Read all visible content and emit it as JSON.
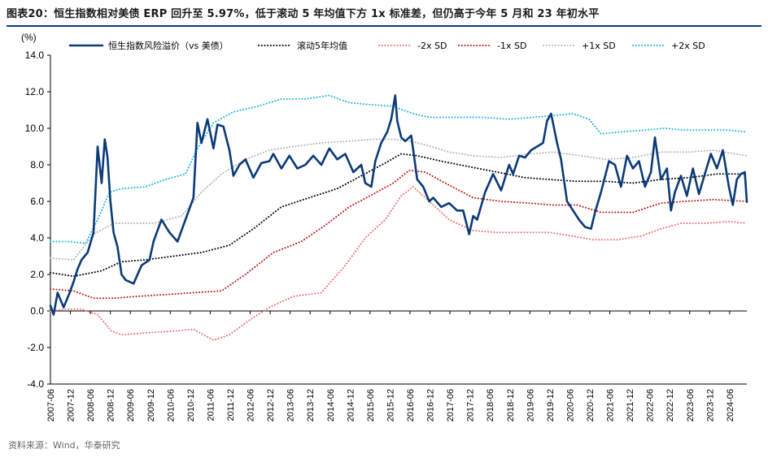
{
  "page": {
    "title": "图表20：恒生指数相对美债 ERP 回升至 5.97%，低于滚动 5 年均值下方 1x 标准差，但仍高于今年 5 月和 23 年初水平",
    "source": "资料来源：Wind，华泰研究"
  },
  "chart_data": {
    "type": "line",
    "title": "恒生指数相对美债 ERP 回升至 5.97%，低于滚动 5 年均值下方 1x 标准差，但仍高于今年 5 月和 23 年初水平",
    "ylabel": "(%)",
    "ylim": [
      -4.0,
      14.0
    ],
    "yticks": [
      "14.0",
      "12.0",
      "10.0",
      "8.0",
      "6.0",
      "4.0",
      "2.0",
      "0.0",
      "-2.0",
      "-4.0"
    ],
    "xlim": [
      2007.42,
      2024.85
    ],
    "xticks": [
      "2007-06",
      "2007-12",
      "2008-06",
      "2008-12",
      "2009-06",
      "2009-12",
      "2010-06",
      "2010-12",
      "2011-06",
      "2011-12",
      "2012-06",
      "2012-12",
      "2013-06",
      "2013-12",
      "2014-06",
      "2014-12",
      "2015-06",
      "2015-12",
      "2016-06",
      "2016-12",
      "2017-06",
      "2017-12",
      "2018-06",
      "2018-12",
      "2019-06",
      "2019-12",
      "2020-06",
      "2020-12",
      "2021-06",
      "2021-12",
      "2022-06",
      "2022-12",
      "2023-06",
      "2023-12",
      "2024-06"
    ],
    "series": [
      {
        "name": "恒生指数风险溢价（vs 美债）",
        "color": "#0b3a78",
        "style": "solid",
        "x": [
          2007.42,
          2007.5,
          2007.6,
          2007.75,
          2007.9,
          2008.0,
          2008.1,
          2008.2,
          2008.35,
          2008.5,
          2008.6,
          2008.7,
          2008.78,
          2008.85,
          2008.92,
          2009.0,
          2009.1,
          2009.2,
          2009.3,
          2009.5,
          2009.7,
          2009.9,
          2010.0,
          2010.2,
          2010.4,
          2010.6,
          2010.8,
          2011.0,
          2011.1,
          2011.2,
          2011.35,
          2011.5,
          2011.6,
          2011.75,
          2011.9,
          2012.0,
          2012.15,
          2012.3,
          2012.5,
          2012.7,
          2012.9,
          2013.0,
          2013.2,
          2013.4,
          2013.6,
          2013.8,
          2014.0,
          2014.2,
          2014.4,
          2014.6,
          2014.8,
          2015.0,
          2015.2,
          2015.3,
          2015.45,
          2015.55,
          2015.7,
          2015.85,
          2015.95,
          2016.05,
          2016.1,
          2016.2,
          2016.3,
          2016.45,
          2016.6,
          2016.75,
          2016.9,
          2017.0,
          2017.2,
          2017.4,
          2017.6,
          2017.75,
          2017.9,
          2018.0,
          2018.1,
          2018.3,
          2018.5,
          2018.7,
          2018.9,
          2019.0,
          2019.15,
          2019.3,
          2019.45,
          2019.6,
          2019.75,
          2019.85,
          2019.95,
          2020.1,
          2020.2,
          2020.35,
          2020.5,
          2020.65,
          2020.8,
          2020.95,
          2021.05,
          2021.2,
          2021.4,
          2021.55,
          2021.7,
          2021.85,
          2022.0,
          2022.15,
          2022.3,
          2022.45,
          2022.55,
          2022.7,
          2022.85,
          2022.95,
          2023.05,
          2023.2,
          2023.35,
          2023.5,
          2023.65,
          2023.8,
          2023.95,
          2024.1,
          2024.25,
          2024.4,
          2024.5,
          2024.6,
          2024.7,
          2024.8,
          2024.85
        ],
        "y": [
          0.3,
          -0.2,
          1.0,
          0.2,
          1.0,
          1.6,
          2.3,
          2.8,
          3.2,
          4.3,
          9.0,
          7.0,
          9.4,
          8.4,
          6.0,
          4.3,
          3.5,
          2.0,
          1.7,
          1.5,
          2.5,
          2.8,
          3.8,
          5.0,
          4.3,
          3.8,
          5.0,
          6.2,
          10.3,
          9.2,
          10.5,
          8.9,
          10.2,
          10.1,
          8.8,
          7.4,
          8.0,
          8.3,
          7.3,
          8.1,
          8.2,
          8.6,
          7.8,
          8.5,
          7.8,
          8.0,
          8.5,
          8.0,
          8.9,
          8.3,
          8.6,
          7.6,
          8.0,
          7.0,
          6.8,
          8.2,
          9.2,
          9.8,
          10.5,
          11.8,
          10.4,
          9.5,
          9.3,
          9.6,
          7.2,
          6.8,
          6.0,
          6.2,
          5.7,
          5.9,
          5.5,
          5.5,
          4.2,
          5.2,
          5.0,
          6.5,
          7.5,
          6.6,
          8.0,
          7.5,
          8.5,
          8.4,
          8.8,
          9.0,
          9.2,
          10.4,
          10.8,
          9.2,
          8.3,
          6.0,
          5.5,
          5.0,
          4.6,
          4.5,
          5.4,
          6.5,
          8.2,
          8.0,
          6.8,
          8.5,
          7.8,
          8.2,
          6.8,
          7.6,
          9.5,
          7.2,
          7.8,
          5.5,
          6.5,
          7.4,
          6.3,
          7.8,
          6.4,
          7.5,
          8.6,
          7.8,
          8.8,
          6.8,
          5.8,
          7.2,
          7.5,
          7.6,
          5.97
        ]
      },
      {
        "name": "滚动5年均值",
        "color": "#000000",
        "style": "dotted",
        "x": [
          2007.42,
          2008.0,
          2008.7,
          2009.2,
          2009.8,
          2010.5,
          2011.2,
          2011.9,
          2012.5,
          2013.2,
          2013.9,
          2014.6,
          2015.2,
          2015.8,
          2016.2,
          2016.6,
          2017.2,
          2017.9,
          2018.6,
          2019.3,
          2019.9,
          2020.6,
          2021.3,
          2022.0,
          2022.7,
          2023.4,
          2024.1,
          2024.85
        ],
        "y": [
          2.1,
          1.9,
          2.2,
          2.7,
          2.8,
          3.0,
          3.2,
          3.6,
          4.5,
          5.7,
          6.2,
          6.7,
          7.4,
          8.1,
          8.6,
          8.5,
          8.2,
          7.9,
          7.6,
          7.3,
          7.2,
          7.1,
          7.1,
          7.0,
          7.2,
          7.3,
          7.5,
          7.5
        ]
      },
      {
        "name": "-2x SD",
        "color": "#f07070",
        "style": "dotted",
        "x": [
          2007.42,
          2007.8,
          2008.2,
          2008.6,
          2008.95,
          2009.2,
          2009.8,
          2010.5,
          2011.0,
          2011.5,
          2011.9,
          2012.4,
          2012.9,
          2013.5,
          2014.2,
          2014.8,
          2015.3,
          2015.8,
          2016.2,
          2016.5,
          2016.9,
          2017.4,
          2018.0,
          2018.6,
          2019.3,
          2019.9,
          2020.5,
          2021.0,
          2021.6,
          2022.2,
          2022.7,
          2023.2,
          2023.8,
          2024.4,
          2024.85
        ],
        "y": [
          0.0,
          0.1,
          0.1,
          -0.2,
          -1.1,
          -1.3,
          -1.2,
          -1.1,
          -1.0,
          -1.6,
          -1.3,
          -0.5,
          0.2,
          0.8,
          1.0,
          2.5,
          4.0,
          5.0,
          6.3,
          6.8,
          6.0,
          5.0,
          4.4,
          4.3,
          4.3,
          4.3,
          4.1,
          3.9,
          3.9,
          4.1,
          4.5,
          4.8,
          4.8,
          4.9,
          4.8
        ]
      },
      {
        "name": "-1x SD",
        "color": "#c01818",
        "style": "dotted",
        "x": [
          2007.42,
          2008.0,
          2008.5,
          2009.0,
          2009.6,
          2010.3,
          2011.0,
          2011.7,
          2012.3,
          2013.0,
          2013.7,
          2014.3,
          2014.9,
          2015.5,
          2016.0,
          2016.4,
          2016.8,
          2017.3,
          2018.0,
          2018.7,
          2019.4,
          2020.0,
          2020.6,
          2021.2,
          2022.0,
          2022.7,
          2023.3,
          2024.0,
          2024.85
        ],
        "y": [
          1.2,
          1.1,
          0.7,
          0.7,
          0.8,
          0.9,
          1.0,
          1.1,
          2.0,
          3.2,
          3.8,
          4.7,
          5.7,
          6.4,
          7.0,
          7.7,
          7.6,
          7.0,
          6.2,
          6.0,
          5.9,
          5.8,
          5.8,
          5.4,
          5.4,
          5.9,
          6.0,
          6.1,
          6.0
        ]
      },
      {
        "name": "+1x SD",
        "color": "#b4b4b4",
        "style": "dotted",
        "x": [
          2007.42,
          2008.0,
          2008.5,
          2009.0,
          2009.5,
          2010.0,
          2010.7,
          2011.2,
          2011.7,
          2012.3,
          2012.9,
          2013.5,
          2014.2,
          2014.9,
          2015.5,
          2016.0,
          2016.4,
          2016.8,
          2017.4,
          2018.0,
          2018.7,
          2019.4,
          2020.0,
          2020.7,
          2021.3,
          2022.0,
          2022.7,
          2023.4,
          2024.0,
          2024.85
        ],
        "y": [
          2.9,
          2.8,
          4.2,
          4.8,
          4.8,
          4.8,
          5.2,
          6.5,
          7.5,
          8.3,
          8.8,
          9.0,
          9.2,
          9.3,
          9.4,
          9.4,
          9.3,
          9.1,
          8.7,
          8.5,
          8.4,
          8.6,
          8.7,
          8.5,
          8.3,
          8.4,
          8.7,
          8.7,
          8.8,
          8.5
        ]
      },
      {
        "name": "+2x SD",
        "color": "#1eb4dc",
        "style": "dotted",
        "x": [
          2007.42,
          2007.9,
          2008.3,
          2008.6,
          2008.9,
          2009.2,
          2009.8,
          2010.3,
          2010.8,
          2011.1,
          2011.5,
          2012.0,
          2012.6,
          2013.2,
          2013.8,
          2014.4,
          2014.9,
          2015.4,
          2016.0,
          2016.5,
          2016.9,
          2017.5,
          2018.2,
          2018.9,
          2019.5,
          2020.0,
          2020.5,
          2020.9,
          2021.2,
          2021.7,
          2022.3,
          2022.8,
          2023.3,
          2023.9,
          2024.4,
          2024.85
        ],
        "y": [
          3.8,
          3.8,
          3.7,
          5.0,
          6.5,
          6.7,
          6.8,
          7.2,
          7.5,
          8.9,
          10.3,
          10.9,
          11.2,
          11.6,
          11.6,
          11.8,
          11.4,
          11.3,
          11.2,
          10.8,
          10.6,
          10.6,
          10.6,
          10.5,
          10.6,
          10.7,
          10.8,
          10.5,
          9.7,
          9.8,
          9.9,
          10.0,
          9.9,
          9.9,
          9.9,
          9.8
        ]
      }
    ]
  }
}
